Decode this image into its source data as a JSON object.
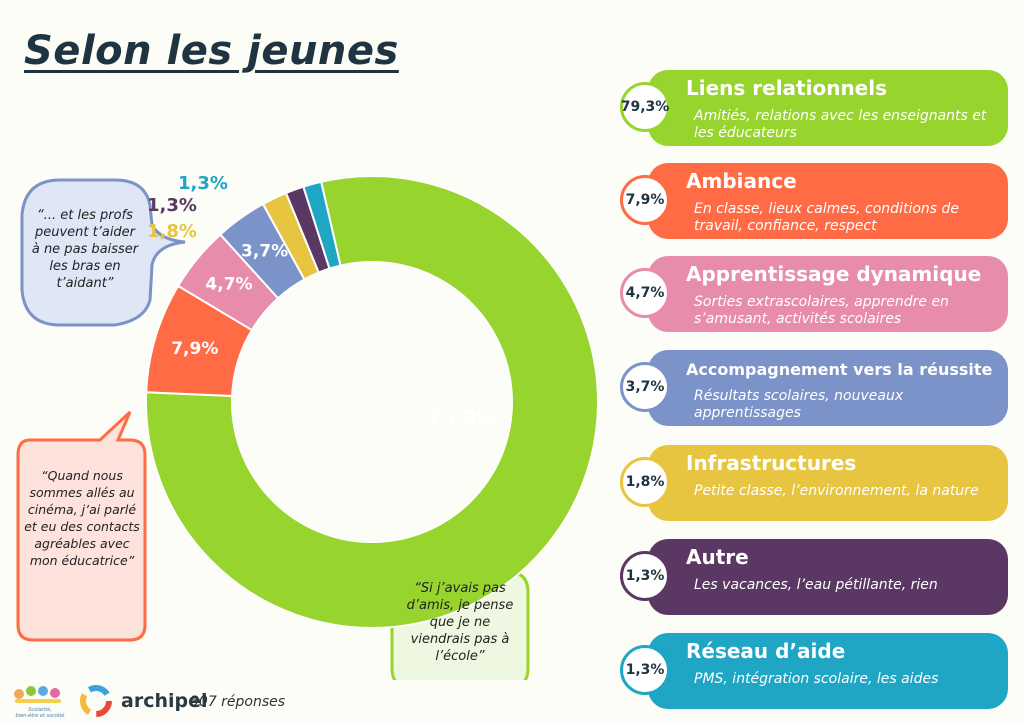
{
  "title": "Selon les jeunes",
  "chart_data": {
    "type": "pie",
    "variant": "donut",
    "title": "",
    "categories": [
      "Liens relationnels",
      "Ambiance",
      "Apprentissage dynamique",
      "Accompagnement vers la réussite",
      "Infrastructures",
      "Autre",
      "Réseau d'aide"
    ],
    "values": [
      79.3,
      7.9,
      4.7,
      3.7,
      1.8,
      1.3,
      1.3
    ],
    "value_labels": [
      "79,3%",
      "7,9%",
      "4,7%",
      "3,7%",
      "1,8%",
      "1,3%",
      "1,3%"
    ],
    "colors": [
      "#97d42e",
      "#ff6b45",
      "#e88cac",
      "#7b93c9",
      "#e8c540",
      "#5b3763",
      "#1ea6c4"
    ],
    "legend_position": "right"
  },
  "cards": [
    {
      "pct": "79,3%",
      "title": "Liens relationnels",
      "desc": "Amitiés, relations avec les enseignants et les éducateurs",
      "color": "#97d42e"
    },
    {
      "pct": "7,9%",
      "title": "Ambiance",
      "desc": "En classe, lieux calmes, conditions de travail, confiance, respect",
      "color": "#ff6b45"
    },
    {
      "pct": "4,7%",
      "title": "Apprentissage dynamique",
      "desc": "Sorties extrascolaires, apprendre en s’amusant, activités scolaires",
      "color": "#e88cac"
    },
    {
      "pct": "3,7%",
      "title": "Accompagnement vers la réussite",
      "desc": "Résultats scolaires, nouveaux apprentissages",
      "color": "#7b93c9"
    },
    {
      "pct": "1,8%",
      "title": "Infrastructures",
      "desc": "Petite classe, l’environnement, la nature",
      "color": "#e8c540"
    },
    {
      "pct": "1,3%",
      "title": "Autre",
      "desc": "Les vacances, l’eau pétillante, rien",
      "color": "#5b3763"
    },
    {
      "pct": "1,3%",
      "title": "Réseau d’aide",
      "desc": "PMS, intégration scolaire, les aides",
      "color": "#1ea6c4"
    }
  ],
  "quotes": [
    {
      "text": "“... et les profs peuvent t’aider à ne pas baisser les bras en t’aidant”",
      "border": "#7b93c9",
      "fill": "#dfe6f5"
    },
    {
      "text": "“Quand nous sommes allés au cinéma, j’ai parlé et eu des contacts agréables avec mon éducatrice”",
      "border": "#ff6b45",
      "fill": "#fde3dc"
    },
    {
      "text": "“Si j’avais pas d’amis, je pense que je ne viendrais pas à l’école”",
      "border": "#97d42e",
      "fill": "#eef7df"
    }
  ],
  "footer": {
    "logo_text": "Scolarité, bien-être et société",
    "brand": "archipel",
    "responses": "307 réponses"
  }
}
